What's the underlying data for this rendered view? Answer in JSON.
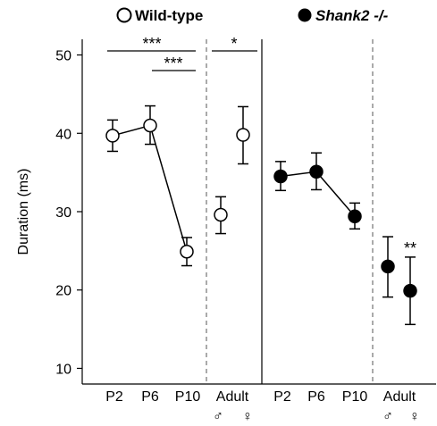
{
  "chart_data": {
    "type": "scatter",
    "ylabel": "Duration (ms)",
    "ylim": [
      8,
      52
    ],
    "yticks": [
      10,
      20,
      30,
      40,
      50
    ],
    "legend": [
      {
        "label": "Wild-type",
        "marker": "open-circle"
      },
      {
        "label": "Shank2 -/-",
        "marker": "filled-circle"
      }
    ],
    "groups": [
      {
        "series": "Wild-type",
        "marker": "open",
        "points": [
          {
            "x": "P2",
            "y": 39.7,
            "err_low": 37.7,
            "err_high": 41.7,
            "connected": true
          },
          {
            "x": "P6",
            "y": 41.0,
            "err_low": 38.6,
            "err_high": 43.5,
            "connected": true
          },
          {
            "x": "P10",
            "y": 24.9,
            "err_low": 23.1,
            "err_high": 26.7,
            "connected": true
          },
          {
            "x": "Adult ♂",
            "y": 29.6,
            "err_low": 27.2,
            "err_high": 31.9,
            "connected": false
          },
          {
            "x": "Adult ♀",
            "y": 39.8,
            "err_low": 36.1,
            "err_high": 43.4,
            "connected": false
          }
        ]
      },
      {
        "series": "Shank2 -/-",
        "marker": "filled",
        "points": [
          {
            "x": "P2",
            "y": 34.5,
            "err_low": 32.7,
            "err_high": 36.4,
            "connected": true
          },
          {
            "x": "P6",
            "y": 35.1,
            "err_low": 32.8,
            "err_high": 37.5,
            "connected": true
          },
          {
            "x": "P10",
            "y": 29.4,
            "err_low": 27.8,
            "err_high": 31.1,
            "connected": true
          },
          {
            "x": "Adult ♂",
            "y": 23.0,
            "err_low": 19.1,
            "err_high": 26.8,
            "connected": false
          },
          {
            "x": "Adult ♀",
            "y": 19.9,
            "err_low": 15.6,
            "err_high": 24.2,
            "connected": false
          }
        ]
      }
    ],
    "x_tick_labels": [
      "P2",
      "P6",
      "P10",
      "Adult",
      "P2",
      "P6",
      "P10",
      "Adult"
    ],
    "sex_labels": [
      "♂",
      "♀",
      "♂",
      "♀"
    ],
    "significance": [
      {
        "text": "***",
        "from": "P2",
        "to": "P10",
        "series": "Wild-type"
      },
      {
        "text": "***",
        "from": "P6",
        "to": "P10",
        "series": "Wild-type"
      },
      {
        "text": "*",
        "from": "Adult ♂",
        "to": "Adult ♀",
        "series": "Wild-type"
      },
      {
        "text": "**",
        "at": "Adult ♀",
        "series": "Shank2 -/-"
      }
    ]
  }
}
